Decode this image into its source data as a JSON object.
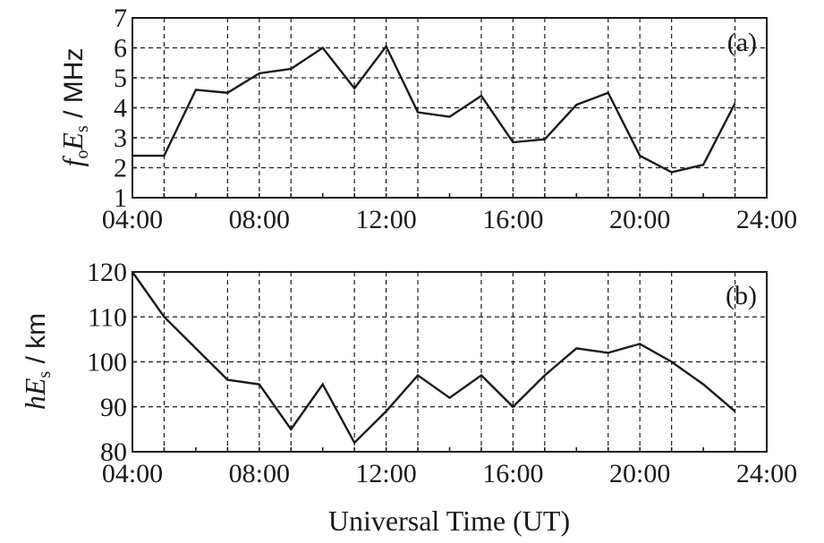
{
  "chart_data": [
    {
      "type": "line",
      "panel_label": "(a)",
      "ylabel_parts": [
        "f",
        "o",
        "E",
        "s",
        " / MHz"
      ],
      "xlabel": "",
      "xlim": [
        4,
        24
      ],
      "ylim": [
        1,
        7
      ],
      "xticks": [
        4,
        8,
        12,
        16,
        20,
        24
      ],
      "xtick_labels": [
        "04:00",
        "08:00",
        "12:00",
        "16:00",
        "20:00",
        "24:00"
      ],
      "yticks": [
        1,
        2,
        3,
        4,
        5,
        6,
        7
      ],
      "ytick_labels": [
        "1",
        "2",
        "3",
        "4",
        "5",
        "6",
        "7"
      ],
      "grid": true,
      "x": [
        4,
        5,
        6,
        7,
        8,
        9,
        10,
        11,
        12,
        13,
        14,
        15,
        16,
        17,
        18,
        19,
        20,
        21,
        22,
        23
      ],
      "series": [
        {
          "values": [
            2.4,
            2.4,
            4.6,
            4.5,
            5.15,
            5.3,
            6.0,
            4.65,
            6.05,
            3.85,
            3.7,
            4.4,
            2.85,
            2.95,
            4.1,
            4.5,
            2.4,
            1.85,
            2.1,
            4.15
          ]
        }
      ]
    },
    {
      "type": "line",
      "panel_label": "(b)",
      "ylabel_parts": [
        "h",
        "E",
        "s",
        " / km"
      ],
      "xlabel": "Universal Time (UT)",
      "xlim": [
        4,
        24
      ],
      "ylim": [
        80,
        120
      ],
      "xticks": [
        4,
        8,
        12,
        16,
        20,
        24
      ],
      "xtick_labels": [
        "04:00",
        "08:00",
        "12:00",
        "16:00",
        "20:00",
        "24:00"
      ],
      "yticks": [
        80,
        90,
        100,
        110,
        120
      ],
      "ytick_labels": [
        "80",
        "90",
        "100",
        "110",
        "120"
      ],
      "grid": true,
      "x": [
        4,
        5,
        6,
        7,
        8,
        9,
        10,
        11,
        12,
        13,
        14,
        15,
        16,
        17,
        18,
        19,
        20,
        21,
        22,
        23
      ],
      "series": [
        {
          "values": [
            120,
            110,
            103,
            96,
            95,
            85,
            95,
            82,
            89,
            97,
            92,
            97,
            90,
            97,
            103,
            102,
            104,
            100,
            95,
            89
          ]
        }
      ]
    }
  ]
}
